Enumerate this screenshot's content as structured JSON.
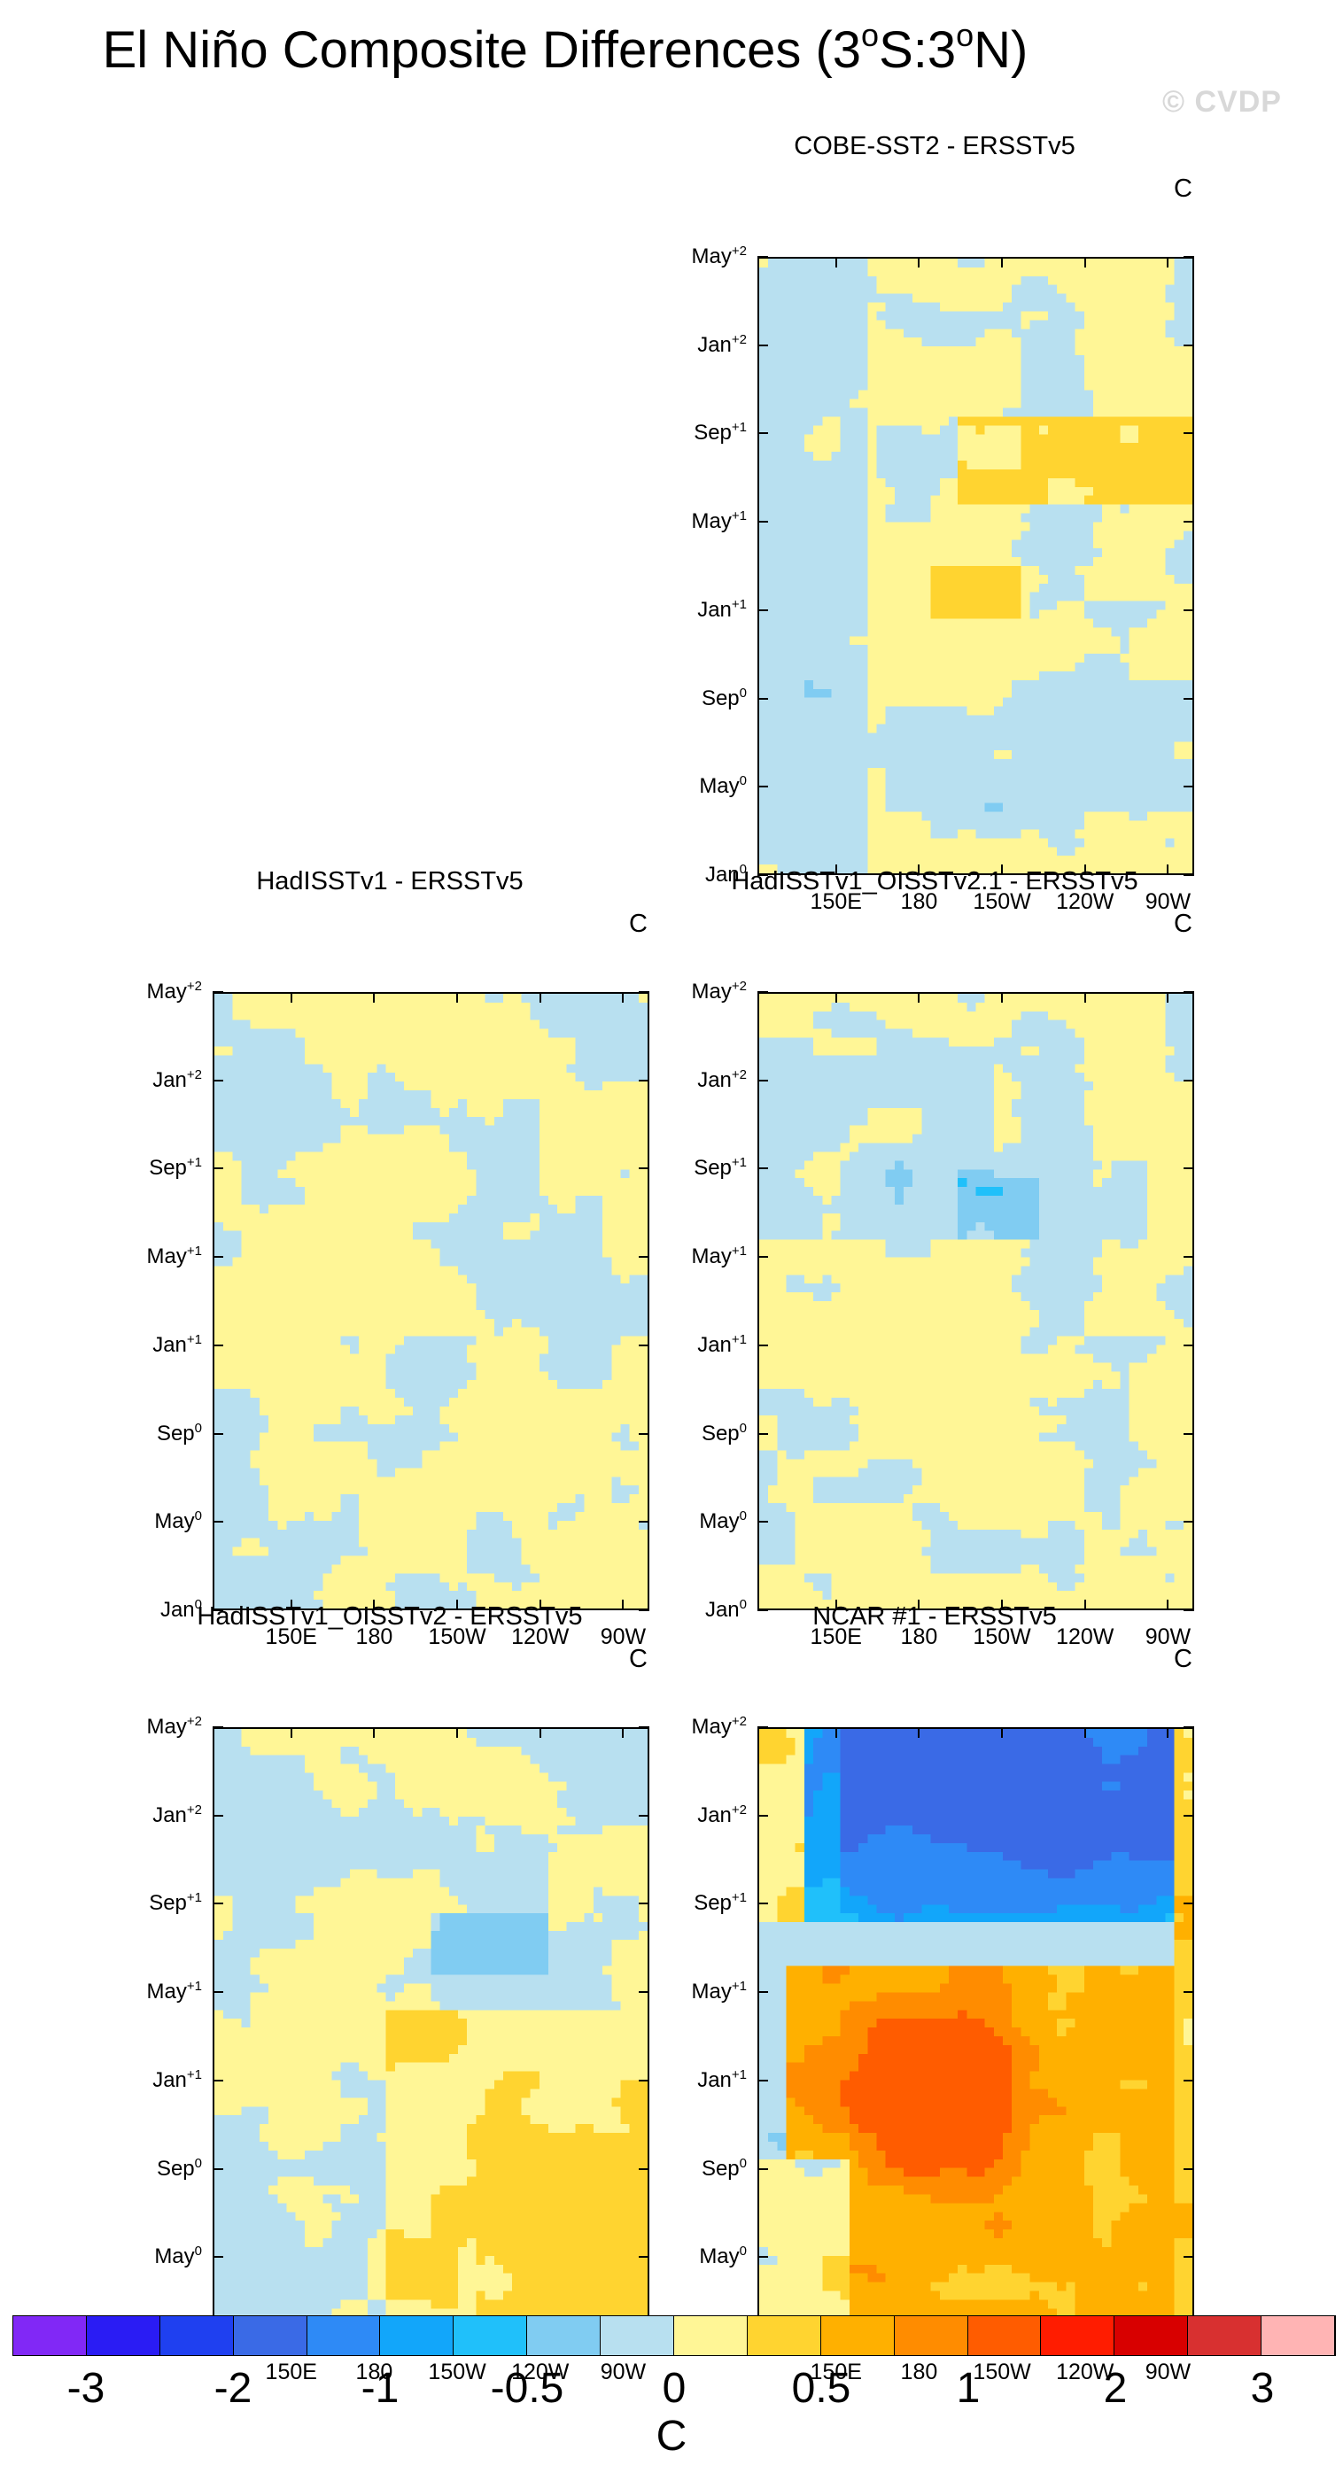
{
  "title_main": "El Niño Composite Differences (3",
  "title_sup1": "o",
  "title_mid": "S:3",
  "title_sup2": "o",
  "title_end": "N)",
  "copyright": "© CVDP",
  "units_label": "C",
  "panels": [
    {
      "title": "COBE-SST2 - ERSSTv5",
      "pattern": "cobe"
    },
    {
      "title": "HadISSTv1 - ERSSTv5",
      "pattern": "had"
    },
    {
      "title": "HadISSTv1_OISSTv2.1 - ERSSTv5",
      "pattern": "oi21"
    },
    {
      "title": "HadISSTv1_OISSTv2 - ERSSTv5",
      "pattern": "oi2"
    },
    {
      "title": "NCAR #1 - ERSSTv5",
      "pattern": "ncar"
    }
  ],
  "colorbar": {
    "labels": [
      "-3",
      "-2",
      "-1",
      "-0.5",
      "0",
      "0.5",
      "1",
      "2",
      "3"
    ],
    "unit": "C",
    "colors": [
      "#8128f6",
      "#2a1cf4",
      "#1f40f0",
      "#3a6ae6",
      "#2e8af6",
      "#12a6fa",
      "#20c0fa",
      "#80ccf2",
      "#b8e0f0",
      "#fff696",
      "#ffd430",
      "#ffb000",
      "#ff8c00",
      "#ff5c00",
      "#ff1c00",
      "#d80000",
      "#d83030",
      "#ffb4b4"
    ]
  },
  "chart_data": {
    "type": "heatmap",
    "title": "El Niño Composite Differences (3oS:3oN)",
    "y_ticks": [
      {
        "base": "Jan",
        "sup": "0"
      },
      {
        "base": "May",
        "sup": "0"
      },
      {
        "base": "Sep",
        "sup": "0"
      },
      {
        "base": "Jan",
        "sup": "+1"
      },
      {
        "base": "May",
        "sup": "+1"
      },
      {
        "base": "Sep",
        "sup": "+1"
      },
      {
        "base": "Jan",
        "sup": "+2"
      },
      {
        "base": "May",
        "sup": "+2"
      }
    ],
    "x_ticks": [
      "150E",
      "180",
      "150W",
      "120W",
      "90W"
    ],
    "levels": [
      -3,
      -2.5,
      -2,
      -1.5,
      -1,
      -0.75,
      -0.5,
      -0.25,
      0,
      0.25,
      0.5,
      0.75,
      1,
      1.5,
      2,
      2.5,
      3
    ],
    "units": "C"
  }
}
